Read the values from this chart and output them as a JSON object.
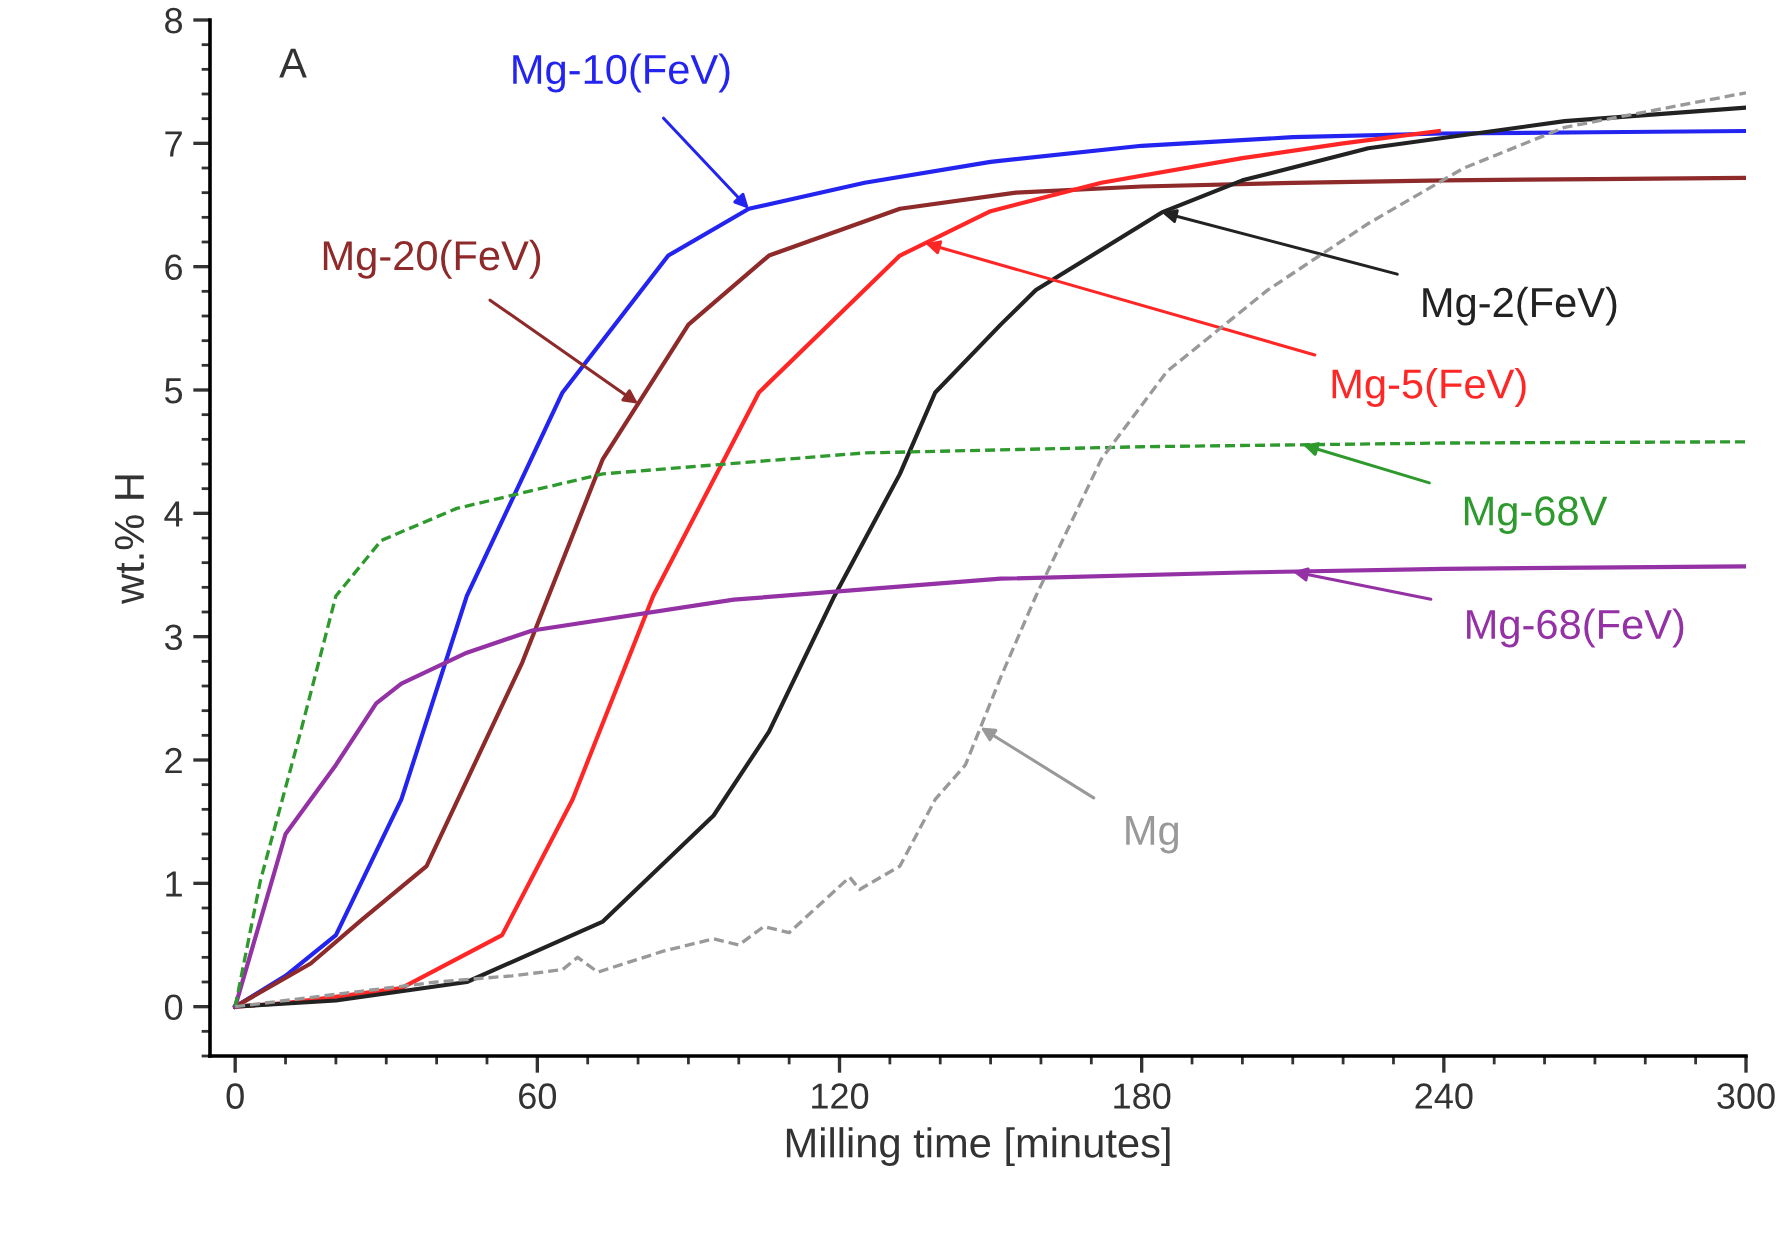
{
  "chart_data": {
    "type": "line",
    "xlabel": "Milling time [minutes]",
    "ylabel": "wt.% H",
    "xlim": [
      -5,
      300
    ],
    "xticks": [
      0,
      60,
      120,
      180,
      240,
      300
    ],
    "ylim": [
      -0.4,
      8
    ],
    "yticks": [
      0,
      1,
      2,
      3,
      4,
      5,
      6,
      7,
      8
    ],
    "grid": false,
    "legend": false,
    "marker": "none",
    "annotations": [
      "A"
    ],
    "series": [
      {
        "name": "Mg-10(FeV)",
        "color": "#2424f0",
        "line_style": "solid",
        "x": [
          0,
          10,
          20,
          33,
          46,
          65,
          86,
          102,
          125,
          150,
          180,
          210,
          240,
          270,
          300
        ],
        "values": [
          0,
          0.25,
          0.58,
          1.68,
          3.33,
          4.98,
          6.09,
          6.47,
          6.68,
          6.85,
          6.98,
          7.05,
          7.08,
          7.09,
          7.1
        ]
      },
      {
        "name": "Mg-20(FeV)",
        "color": "#8e2a2a",
        "line_style": "solid",
        "x": [
          0,
          15,
          25,
          38,
          57,
          73,
          90,
          106,
          132,
          155,
          180,
          210,
          240,
          270,
          300
        ],
        "values": [
          0,
          0.35,
          0.7,
          1.14,
          2.79,
          4.44,
          5.53,
          6.09,
          6.47,
          6.6,
          6.65,
          6.68,
          6.7,
          6.71,
          6.72
        ]
      },
      {
        "name": "Mg-5(FeV)",
        "color": "#ff2626",
        "line_style": "solid",
        "x": [
          0,
          10,
          20,
          33,
          53,
          67,
          83,
          104,
          132,
          150,
          172,
          200,
          220,
          239
        ],
        "values": [
          0,
          0.03,
          0.08,
          0.15,
          0.58,
          1.68,
          3.33,
          4.98,
          6.09,
          6.45,
          6.68,
          6.88,
          7.0,
          7.1
        ]
      },
      {
        "name": "Mg-2(FeV)",
        "color": "#222222",
        "line_style": "solid",
        "x": [
          0,
          20,
          46,
          73,
          95,
          106,
          119,
          132,
          139,
          152,
          159,
          184,
          200,
          225,
          264,
          300
        ],
        "values": [
          0,
          0.05,
          0.2,
          0.69,
          1.55,
          2.23,
          3.33,
          4.32,
          4.98,
          5.53,
          5.81,
          6.44,
          6.7,
          6.96,
          7.18,
          7.29
        ]
      },
      {
        "name": "Mg-68V",
        "color": "#2e9a2e",
        "line_style": "dashed",
        "x": [
          0,
          5,
          13,
          20,
          29,
          44,
          73,
          125,
          180,
          240,
          300
        ],
        "values": [
          0,
          1.02,
          2.23,
          3.33,
          3.78,
          4.04,
          4.32,
          4.49,
          4.54,
          4.57,
          4.58
        ]
      },
      {
        "name": "Mg-68(FeV)",
        "color": "#9431a4",
        "line_style": "solid",
        "x": [
          0,
          5,
          10,
          20,
          28,
          33,
          46,
          59,
          99,
          152,
          200,
          240,
          300
        ],
        "values": [
          0,
          0.7,
          1.4,
          1.96,
          2.46,
          2.62,
          2.87,
          3.05,
          3.3,
          3.47,
          3.52,
          3.55,
          3.57
        ]
      },
      {
        "name": "Mg",
        "color": "#999999",
        "line_style": "dashed",
        "x": [
          0,
          20,
          40,
          55,
          65,
          68,
          72,
          85,
          95,
          100,
          105,
          110,
          118,
          122,
          124,
          132,
          139,
          145,
          152,
          159,
          172,
          185,
          205,
          225,
          244,
          264,
          300
        ],
        "values": [
          0,
          0.1,
          0.2,
          0.25,
          0.3,
          0.4,
          0.28,
          0.45,
          0.55,
          0.5,
          0.65,
          0.6,
          0.9,
          1.05,
          0.95,
          1.14,
          1.68,
          1.96,
          2.67,
          3.33,
          4.44,
          5.15,
          5.81,
          6.35,
          6.8,
          7.13,
          7.41
        ]
      }
    ]
  }
}
